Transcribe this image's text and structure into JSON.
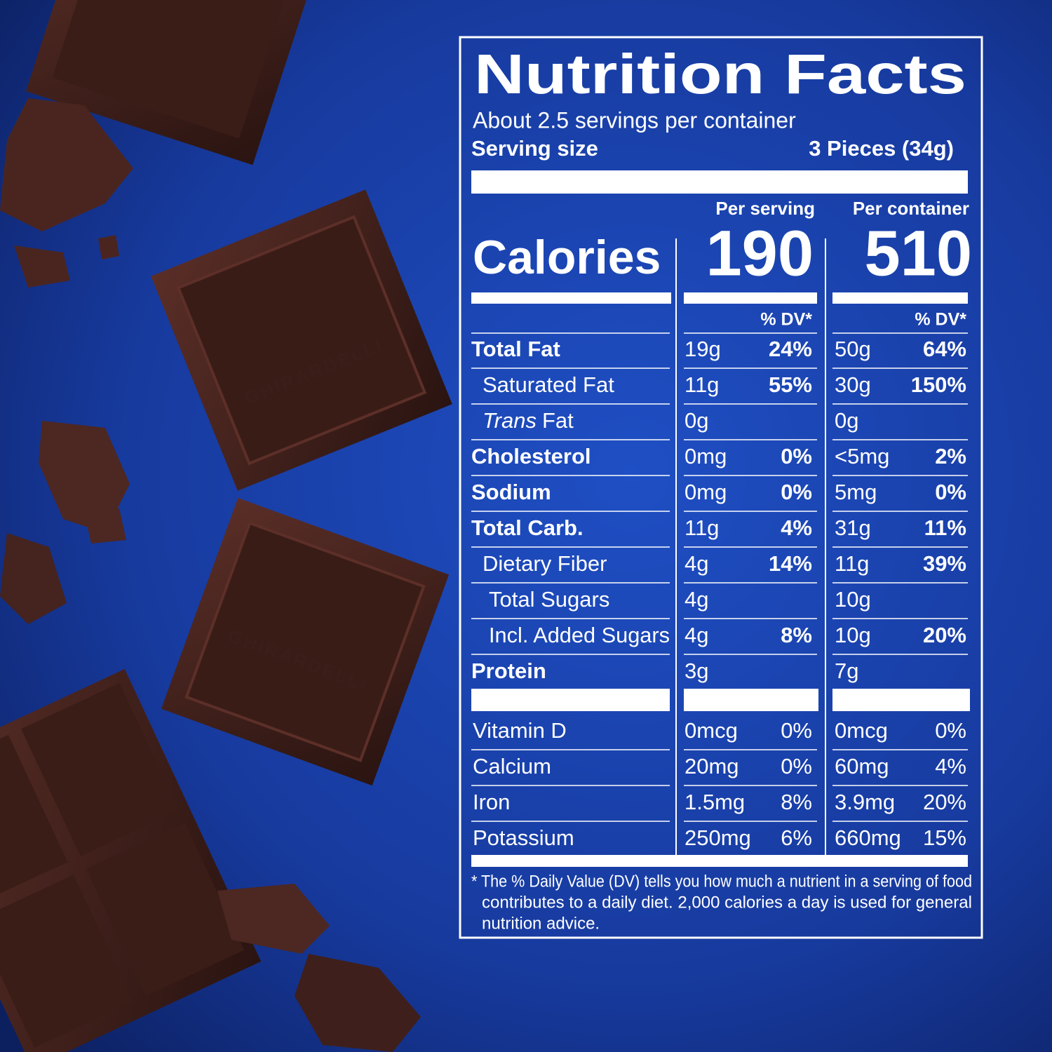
{
  "brand": "GHIRARDELLI",
  "label": {
    "title": "Nutrition Facts",
    "servings": "About 2.5 servings per container",
    "serving_size_label": "Serving size",
    "serving_size": "3 Pieces (34g)",
    "columns": [
      "Per serving",
      "Per container"
    ],
    "calories_label": "Calories",
    "calories": [
      190,
      510
    ],
    "dv_header": "% DV*",
    "rows": [
      {
        "name": "Total Fat",
        "bold": true,
        "indent": 0,
        "per_serving": [
          "19g",
          "24%"
        ],
        "per_container": [
          "50g",
          "64%"
        ]
      },
      {
        "name": "Saturated Fat",
        "bold": false,
        "indent": 1,
        "per_serving": [
          "11g",
          "55%"
        ],
        "per_container": [
          "30g",
          "150%"
        ]
      },
      {
        "name_italic": "Trans",
        "name": "Fat",
        "bold": false,
        "indent": 1,
        "per_serving": [
          "0g"
        ],
        "per_container": [
          "0g"
        ]
      },
      {
        "name": "Cholesterol",
        "bold": true,
        "indent": 0,
        "per_serving": [
          "0mg",
          "0%"
        ],
        "per_container": [
          "<5mg",
          "2%"
        ]
      },
      {
        "name": "Sodium",
        "bold": true,
        "indent": 0,
        "per_serving": [
          "0mg",
          "0%"
        ],
        "per_container": [
          "5mg",
          "0%"
        ]
      },
      {
        "name": "Total Carb.",
        "bold": true,
        "indent": 0,
        "per_serving": [
          "11g",
          "4%"
        ],
        "per_container": [
          "31g",
          "11%"
        ]
      },
      {
        "name": "Dietary Fiber",
        "bold": false,
        "indent": 1,
        "per_serving": [
          "4g",
          "14%"
        ],
        "per_container": [
          "11g",
          "39%"
        ]
      },
      {
        "name": "Total Sugars",
        "bold": false,
        "indent": 2,
        "per_serving": [
          "4g"
        ],
        "per_container": [
          "10g"
        ]
      },
      {
        "name": "Incl. Added Sugars",
        "bold": false,
        "indent": 2,
        "per_serving": [
          "4g",
          "8%"
        ],
        "per_container": [
          "10g",
          "20%"
        ]
      },
      {
        "name": "Protein",
        "bold": true,
        "indent": 0,
        "per_serving": [
          "3g"
        ],
        "per_container": [
          "7g"
        ]
      }
    ],
    "vitamins": [
      {
        "name": "Vitamin D",
        "per_serving": [
          "0mcg",
          "0%"
        ],
        "per_container": [
          "0mcg",
          "0%"
        ]
      },
      {
        "name": "Calcium",
        "per_serving": [
          "20mg",
          "0%"
        ],
        "per_container": [
          "60mg",
          "4%"
        ]
      },
      {
        "name": "Iron",
        "per_serving": [
          "1.5mg",
          "8%"
        ],
        "per_container": [
          "3.9mg",
          "20%"
        ]
      },
      {
        "name": "Potassium",
        "per_serving": [
          "250mg",
          "6%"
        ],
        "per_container": [
          "660mg",
          "15%"
        ]
      }
    ],
    "footnote": [
      "* The % Daily Value (DV) tells you how much a nutrient in a serving of food",
      "contributes to a daily diet. 2,000 calories a day is used for general",
      "nutrition advice."
    ]
  }
}
